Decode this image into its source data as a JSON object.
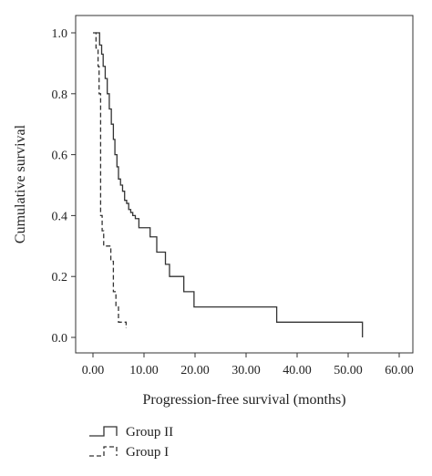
{
  "chart_data": {
    "type": "line",
    "title": "",
    "xlabel": "Progression-free survival (months)",
    "ylabel": "Cumulative survival",
    "xlim": [
      0,
      60
    ],
    "ylim": [
      0,
      1
    ],
    "x_ticks": [
      "0.00",
      "10.00",
      "20.00",
      "30.00",
      "40.00",
      "50.00",
      "60.00"
    ],
    "y_ticks": [
      "0.0",
      "0.2",
      "0.4",
      "0.6",
      "0.8",
      "1.0"
    ],
    "grid": false,
    "legend_position": "bottom-left",
    "series": [
      {
        "name": "Group II",
        "style": "solid",
        "color": "#333333",
        "x": [
          0.5,
          1.3,
          1.7,
          2.0,
          2.4,
          2.8,
          3.2,
          3.6,
          4.0,
          4.3,
          4.7,
          5.0,
          5.4,
          5.8,
          6.2,
          6.6,
          7.0,
          7.4,
          7.8,
          8.3,
          9.0,
          10.2,
          11.2,
          12.5,
          14.2,
          15.0,
          16.0,
          17.8,
          19.8,
          36.0,
          52.8
        ],
        "y": [
          1.0,
          0.96,
          0.93,
          0.89,
          0.85,
          0.8,
          0.75,
          0.7,
          0.65,
          0.6,
          0.56,
          0.52,
          0.5,
          0.48,
          0.45,
          0.44,
          0.42,
          0.41,
          0.4,
          0.39,
          0.36,
          0.36,
          0.33,
          0.28,
          0.24,
          0.2,
          0.2,
          0.15,
          0.1,
          0.05,
          0.0
        ]
      },
      {
        "name": "Group I",
        "style": "dashed",
        "color": "#333333",
        "x": [
          0.0,
          0.6,
          1.0,
          1.2,
          1.5,
          1.8,
          2.1,
          3.0,
          3.5,
          4.0,
          4.5,
          5.0,
          6.0,
          6.5
        ],
        "y": [
          1.0,
          0.95,
          0.89,
          0.8,
          0.4,
          0.35,
          0.3,
          0.3,
          0.25,
          0.15,
          0.1,
          0.05,
          0.05,
          0.03
        ]
      }
    ]
  }
}
